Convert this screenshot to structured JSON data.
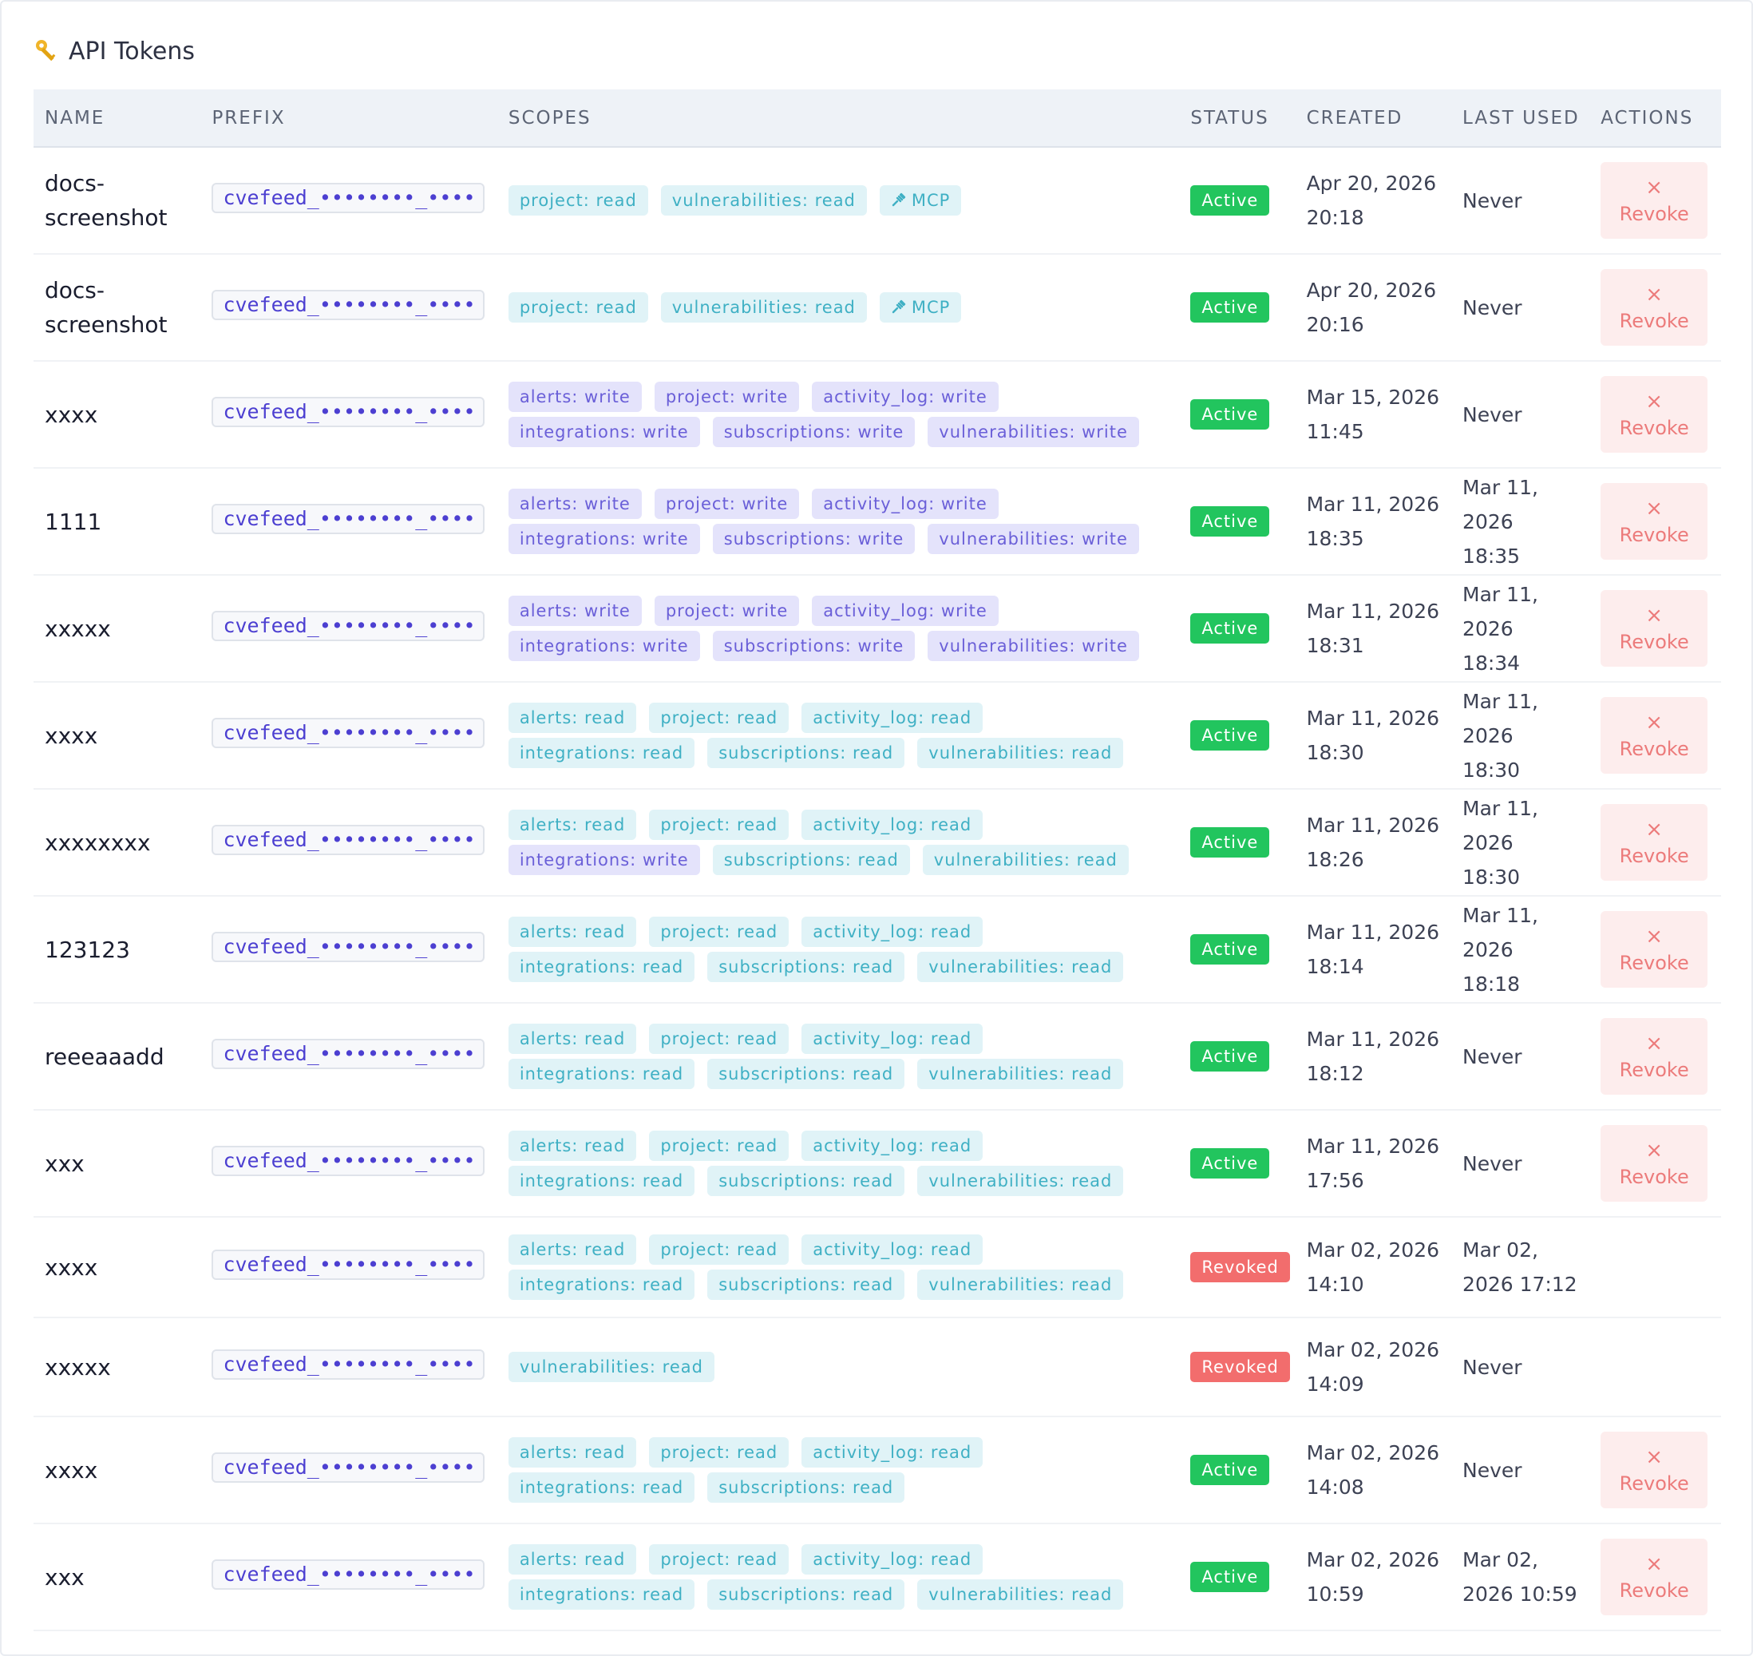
{
  "title": "API Tokens",
  "headers": {
    "name": "NAME",
    "prefix": "PREFIX",
    "scopes": "SCOPES",
    "status": "STATUS",
    "created": "CREATED",
    "last_used": "LAST USED",
    "actions": "ACTIONS"
  },
  "revoke_label": "Revoke",
  "revoke_icon": "×",
  "colors": {
    "active": "#22c55e",
    "revoked": "#f26d6d",
    "prefix_text": "#4c3fd1",
    "scope_read": "#3fb0c4",
    "scope_write": "#6a5fd8",
    "revoke_button_bg": "#fdeded"
  },
  "rows": [
    {
      "name": "docs-screenshot",
      "prefix": "cvefeed_••••••••_••••",
      "scopes": [
        {
          "label": "project: read",
          "kind": "read"
        },
        {
          "label": "vulnerabilities: read",
          "kind": "read"
        },
        {
          "label": "MCP",
          "kind": "mcp"
        }
      ],
      "status": "Active",
      "created": [
        "Apr 20, 2026",
        "20:18"
      ],
      "last_used": [
        "Never"
      ],
      "revocable": true
    },
    {
      "name": "docs-screenshot",
      "prefix": "cvefeed_••••••••_••••",
      "scopes": [
        {
          "label": "project: read",
          "kind": "read"
        },
        {
          "label": "vulnerabilities: read",
          "kind": "read"
        },
        {
          "label": "MCP",
          "kind": "mcp"
        }
      ],
      "status": "Active",
      "created": [
        "Apr 20, 2026",
        "20:16"
      ],
      "last_used": [
        "Never"
      ],
      "revocable": true
    },
    {
      "name": "xxxx",
      "prefix": "cvefeed_••••••••_••••",
      "scopes": [
        {
          "label": "alerts: write",
          "kind": "write"
        },
        {
          "label": "project: write",
          "kind": "write"
        },
        {
          "label": "activity_log: write",
          "kind": "write"
        },
        {
          "label": "integrations: write",
          "kind": "write"
        },
        {
          "label": "subscriptions: write",
          "kind": "write"
        },
        {
          "label": "vulnerabilities: write",
          "kind": "write"
        }
      ],
      "status": "Active",
      "created": [
        "Mar 15, 2026",
        "11:45"
      ],
      "last_used": [
        "Never"
      ],
      "revocable": true
    },
    {
      "name": "1111",
      "prefix": "cvefeed_••••••••_••••",
      "scopes": [
        {
          "label": "alerts: write",
          "kind": "write"
        },
        {
          "label": "project: write",
          "kind": "write"
        },
        {
          "label": "activity_log: write",
          "kind": "write"
        },
        {
          "label": "integrations: write",
          "kind": "write"
        },
        {
          "label": "subscriptions: write",
          "kind": "write"
        },
        {
          "label": "vulnerabilities: write",
          "kind": "write"
        }
      ],
      "status": "Active",
      "created": [
        "Mar 11, 2026",
        "18:35"
      ],
      "last_used": [
        "Mar 11, 2026",
        "18:35"
      ],
      "revocable": true
    },
    {
      "name": "xxxxx",
      "prefix": "cvefeed_••••••••_••••",
      "scopes": [
        {
          "label": "alerts: write",
          "kind": "write"
        },
        {
          "label": "project: write",
          "kind": "write"
        },
        {
          "label": "activity_log: write",
          "kind": "write"
        },
        {
          "label": "integrations: write",
          "kind": "write"
        },
        {
          "label": "subscriptions: write",
          "kind": "write"
        },
        {
          "label": "vulnerabilities: write",
          "kind": "write"
        }
      ],
      "status": "Active",
      "created": [
        "Mar 11, 2026",
        "18:31"
      ],
      "last_used": [
        "Mar 11, 2026",
        "18:34"
      ],
      "revocable": true
    },
    {
      "name": "xxxx",
      "prefix": "cvefeed_••••••••_••••",
      "scopes": [
        {
          "label": "alerts: read",
          "kind": "read"
        },
        {
          "label": "project: read",
          "kind": "read"
        },
        {
          "label": "activity_log: read",
          "kind": "read"
        },
        {
          "label": "integrations: read",
          "kind": "read"
        },
        {
          "label": "subscriptions: read",
          "kind": "read"
        },
        {
          "label": "vulnerabilities: read",
          "kind": "read"
        }
      ],
      "status": "Active",
      "created": [
        "Mar 11, 2026",
        "18:30"
      ],
      "last_used": [
        "Mar 11, 2026",
        "18:30"
      ],
      "revocable": true
    },
    {
      "name": "xxxxxxxx",
      "prefix": "cvefeed_••••••••_••••",
      "scopes": [
        {
          "label": "alerts: read",
          "kind": "read"
        },
        {
          "label": "project: read",
          "kind": "read"
        },
        {
          "label": "activity_log: read",
          "kind": "read"
        },
        {
          "label": "integrations: write",
          "kind": "write"
        },
        {
          "label": "subscriptions: read",
          "kind": "read"
        },
        {
          "label": "vulnerabilities: read",
          "kind": "read"
        }
      ],
      "status": "Active",
      "created": [
        "Mar 11, 2026",
        "18:26"
      ],
      "last_used": [
        "Mar 11, 2026",
        "18:30"
      ],
      "revocable": true
    },
    {
      "name": "123123",
      "prefix": "cvefeed_••••••••_••••",
      "scopes": [
        {
          "label": "alerts: read",
          "kind": "read"
        },
        {
          "label": "project: read",
          "kind": "read"
        },
        {
          "label": "activity_log: read",
          "kind": "read"
        },
        {
          "label": "integrations: read",
          "kind": "read"
        },
        {
          "label": "subscriptions: read",
          "kind": "read"
        },
        {
          "label": "vulnerabilities: read",
          "kind": "read"
        }
      ],
      "status": "Active",
      "created": [
        "Mar 11, 2026",
        "18:14"
      ],
      "last_used": [
        "Mar 11, 2026",
        "18:18"
      ],
      "revocable": true
    },
    {
      "name": "reeeaaadd",
      "prefix": "cvefeed_••••••••_••••",
      "scopes": [
        {
          "label": "alerts: read",
          "kind": "read"
        },
        {
          "label": "project: read",
          "kind": "read"
        },
        {
          "label": "activity_log: read",
          "kind": "read"
        },
        {
          "label": "integrations: read",
          "kind": "read"
        },
        {
          "label": "subscriptions: read",
          "kind": "read"
        },
        {
          "label": "vulnerabilities: read",
          "kind": "read"
        }
      ],
      "status": "Active",
      "created": [
        "Mar 11, 2026",
        "18:12"
      ],
      "last_used": [
        "Never"
      ],
      "revocable": true
    },
    {
      "name": "xxx",
      "prefix": "cvefeed_••••••••_••••",
      "scopes": [
        {
          "label": "alerts: read",
          "kind": "read"
        },
        {
          "label": "project: read",
          "kind": "read"
        },
        {
          "label": "activity_log: read",
          "kind": "read"
        },
        {
          "label": "integrations: read",
          "kind": "read"
        },
        {
          "label": "subscriptions: read",
          "kind": "read"
        },
        {
          "label": "vulnerabilities: read",
          "kind": "read"
        }
      ],
      "status": "Active",
      "created": [
        "Mar 11, 2026",
        "17:56"
      ],
      "last_used": [
        "Never"
      ],
      "revocable": true
    },
    {
      "name": "xxxx",
      "prefix": "cvefeed_••••••••_••••",
      "scopes": [
        {
          "label": "alerts: read",
          "kind": "read"
        },
        {
          "label": "project: read",
          "kind": "read"
        },
        {
          "label": "activity_log: read",
          "kind": "read"
        },
        {
          "label": "integrations: read",
          "kind": "read"
        },
        {
          "label": "subscriptions: read",
          "kind": "read"
        },
        {
          "label": "vulnerabilities: read",
          "kind": "read"
        }
      ],
      "status": "Revoked",
      "created": [
        "Mar 02, 2026",
        "14:10"
      ],
      "last_used": [
        "Mar 02,",
        "2026 17:12"
      ],
      "revocable": false
    },
    {
      "name": "xxxxx",
      "prefix": "cvefeed_••••••••_••••",
      "scopes": [
        {
          "label": "vulnerabilities: read",
          "kind": "read"
        }
      ],
      "status": "Revoked",
      "created": [
        "Mar 02, 2026",
        "14:09"
      ],
      "last_used": [
        "Never"
      ],
      "revocable": false
    },
    {
      "name": "xxxx",
      "prefix": "cvefeed_••••••••_••••",
      "scopes": [
        {
          "label": "alerts: read",
          "kind": "read"
        },
        {
          "label": "project: read",
          "kind": "read"
        },
        {
          "label": "activity_log: read",
          "kind": "read"
        },
        {
          "label": "integrations: read",
          "kind": "read"
        },
        {
          "label": "subscriptions: read",
          "kind": "read"
        }
      ],
      "status": "Active",
      "created": [
        "Mar 02, 2026",
        "14:08"
      ],
      "last_used": [
        "Never"
      ],
      "revocable": true
    },
    {
      "name": "xxx",
      "prefix": "cvefeed_••••••••_••••",
      "scopes": [
        {
          "label": "alerts: read",
          "kind": "read"
        },
        {
          "label": "project: read",
          "kind": "read"
        },
        {
          "label": "activity_log: read",
          "kind": "read"
        },
        {
          "label": "integrations: read",
          "kind": "read"
        },
        {
          "label": "subscriptions: read",
          "kind": "read"
        },
        {
          "label": "vulnerabilities: read",
          "kind": "read"
        }
      ],
      "status": "Active",
      "created": [
        "Mar 02, 2026",
        "10:59"
      ],
      "last_used": [
        "Mar 02,",
        "2026 10:59"
      ],
      "revocable": true
    }
  ]
}
